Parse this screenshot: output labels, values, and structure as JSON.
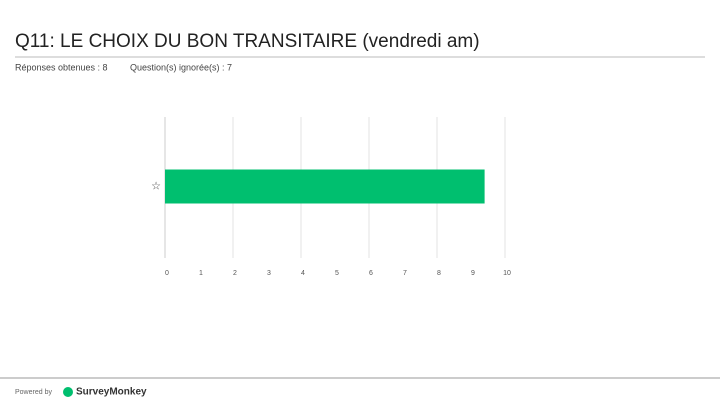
{
  "header": {
    "title": "Q11: LE CHOIX DU BON TRANSITAIRE (vendredi am)",
    "answered": "Réponses obtenues : 8",
    "skipped": "Question(s) ignorée(s) : 7"
  },
  "footer": {
    "powered_by": "Powered by",
    "brand": "SurveyMonkey"
  },
  "chart_data": {
    "type": "hbar",
    "categories": [
      "☆"
    ],
    "values": [
      9.4
    ],
    "color": "#00bf6f",
    "xlim": [
      0,
      10
    ],
    "xticks": [
      0,
      1,
      2,
      3,
      4,
      5,
      6,
      7,
      8,
      9,
      10
    ],
    "grid": true
  }
}
